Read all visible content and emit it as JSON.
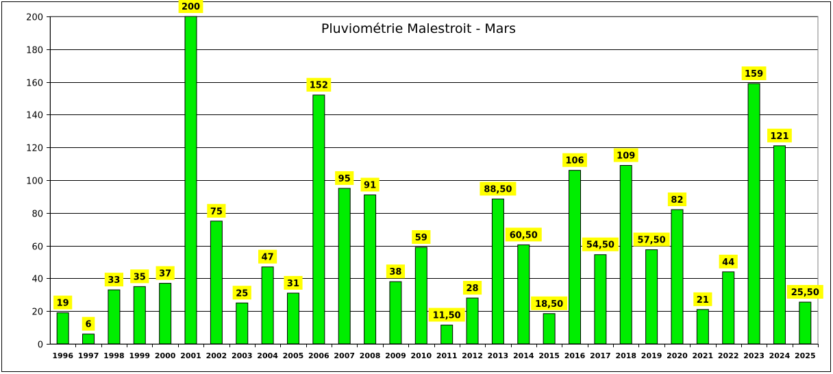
{
  "chart_data": {
    "type": "bar",
    "title": "Pluviométrie Malestroit - Mars",
    "xlabel": "",
    "ylabel": "",
    "ylim": [
      0,
      200
    ],
    "yticks": [
      0,
      20,
      40,
      60,
      80,
      100,
      120,
      140,
      160,
      180,
      200
    ],
    "grid": true,
    "categories": [
      "1996",
      "1997",
      "1998",
      "1999",
      "2000",
      "2001",
      "2002",
      "2003",
      "2004",
      "2005",
      "2006",
      "2007",
      "2008",
      "2009",
      "2010",
      "2011",
      "2012",
      "2013",
      "2014",
      "2015",
      "2016",
      "2017",
      "2018",
      "2019",
      "2020",
      "2021",
      "2022",
      "2023",
      "2024",
      "2025"
    ],
    "values": [
      19,
      6,
      33,
      35,
      37,
      200,
      75,
      25,
      47,
      31,
      152,
      95,
      91,
      38,
      59,
      11.5,
      28,
      88.5,
      60.5,
      18.5,
      106,
      54.5,
      109,
      57.5,
      82,
      21,
      44,
      159,
      121,
      25.5
    ],
    "data_labels": [
      "19",
      "6",
      "33",
      "35",
      "37",
      "200",
      "75",
      "25",
      "47",
      "31",
      "152",
      "95",
      "91",
      "38",
      "59",
      "11,50",
      "28",
      "88,50",
      "60,50",
      "18,50",
      "106",
      "54,50",
      "109",
      "57,50",
      "82",
      "21",
      "44",
      "159",
      "121",
      "25,50"
    ],
    "colors": {
      "bar_fill": "#00ee00",
      "bar_stroke": "#000000",
      "label_bg": "#ffff00",
      "grid": "#000000"
    }
  }
}
